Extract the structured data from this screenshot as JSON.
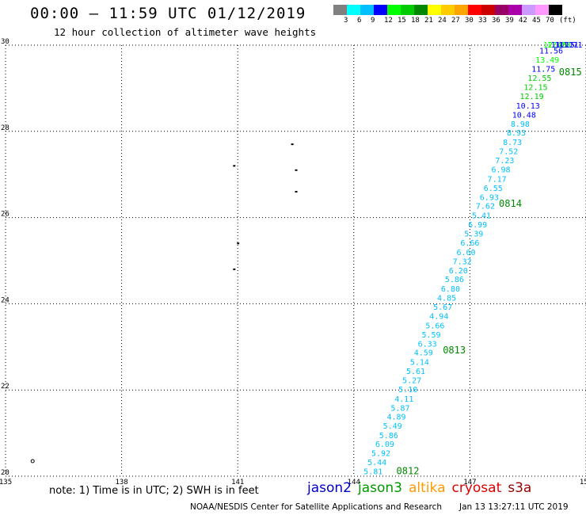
{
  "header": {
    "title": "00:00 – 11:59 UTC 01/12/2019",
    "subtitle": "12 hour collection of altimeter wave heights"
  },
  "legend": {
    "colors": [
      "#808080",
      "#00ffff",
      "#00bfff",
      "#0000ff",
      "#00ff00",
      "#00cc00",
      "#008800",
      "#ffff00",
      "#ffcc00",
      "#ffa500",
      "#ff0000",
      "#cc0000",
      "#990066",
      "#aa00aa",
      "#cc99ff",
      "#ff99ff",
      "#000000"
    ],
    "labels": [
      "3",
      "6",
      "9",
      "12",
      "15",
      "18",
      "21",
      "24",
      "27",
      "30",
      "33",
      "36",
      "39",
      "42",
      "45",
      "70",
      "(ft)"
    ]
  },
  "map": {
    "lat_range": [
      20,
      30
    ],
    "lon_range": [
      135,
      150
    ],
    "lat_ticks": [
      "20",
      "22",
      "24",
      "26",
      "28",
      "30"
    ],
    "lon_ticks": [
      "135",
      "138",
      "141",
      "144",
      "147",
      "150"
    ],
    "grid": true,
    "islands": [
      {
        "lon": 135.7,
        "lat": 20.35,
        "type": "ring"
      },
      {
        "lon": 140.9,
        "lat": 24.8
      },
      {
        "lon": 141.0,
        "lat": 25.4
      },
      {
        "lon": 142.5,
        "lat": 26.6
      },
      {
        "lon": 142.5,
        "lat": 27.1
      },
      {
        "lon": 142.4,
        "lat": 27.7
      },
      {
        "lon": 140.9,
        "lat": 27.2
      }
    ],
    "tracks": [
      {
        "color": "#00bfff",
        "points": [
          {
            "lon": 144.5,
            "lat": 20.05,
            "v": "5.81"
          },
          {
            "lon": 144.6,
            "lat": 20.26,
            "v": "5.44"
          },
          {
            "lon": 144.7,
            "lat": 20.47,
            "v": "5.92"
          },
          {
            "lon": 144.8,
            "lat": 20.68,
            "v": "6.09"
          },
          {
            "lon": 144.9,
            "lat": 20.88,
            "v": "5.86"
          },
          {
            "lon": 145.0,
            "lat": 21.1,
            "v": "5.49"
          },
          {
            "lon": 145.1,
            "lat": 21.31,
            "v": "4.89"
          },
          {
            "lon": 145.2,
            "lat": 21.52,
            "v": "5.87"
          },
          {
            "lon": 145.3,
            "lat": 21.73,
            "v": "4.11"
          },
          {
            "lon": 145.4,
            "lat": 21.95,
            "v": "5.10"
          },
          {
            "lon": 145.5,
            "lat": 22.16,
            "v": "5.27"
          },
          {
            "lon": 145.6,
            "lat": 22.37,
            "v": "5.61"
          },
          {
            "lon": 145.7,
            "lat": 22.58,
            "v": "5.14"
          },
          {
            "lon": 145.8,
            "lat": 22.8,
            "v": "4.59"
          },
          {
            "lon": 145.9,
            "lat": 23.01,
            "v": "6.33"
          },
          {
            "lon": 146.0,
            "lat": 23.22,
            "v": "5.59"
          },
          {
            "lon": 146.1,
            "lat": 23.43,
            "v": "5.66"
          },
          {
            "lon": 146.2,
            "lat": 23.65,
            "v": "4.94"
          },
          {
            "lon": 146.3,
            "lat": 23.86,
            "v": "5.67"
          },
          {
            "lon": 146.4,
            "lat": 24.07,
            "v": "4.85"
          },
          {
            "lon": 146.5,
            "lat": 24.28,
            "v": "6.80"
          },
          {
            "lon": 146.6,
            "lat": 24.5,
            "v": "5.86"
          },
          {
            "lon": 146.7,
            "lat": 24.71,
            "v": "6.20"
          },
          {
            "lon": 146.8,
            "lat": 24.92,
            "v": "7.32"
          },
          {
            "lon": 146.9,
            "lat": 25.13,
            "v": "6.60"
          },
          {
            "lon": 147.0,
            "lat": 25.35,
            "v": "6.66"
          },
          {
            "lon": 147.1,
            "lat": 25.56,
            "v": "5.39"
          },
          {
            "lon": 147.2,
            "lat": 25.77,
            "v": "6.99"
          },
          {
            "lon": 147.3,
            "lat": 25.98,
            "v": "5.41"
          },
          {
            "lon": 147.4,
            "lat": 26.2,
            "v": "7.62"
          },
          {
            "lon": 147.5,
            "lat": 26.41,
            "v": "6.93"
          },
          {
            "lon": 147.6,
            "lat": 26.62,
            "v": "6.55"
          },
          {
            "lon": 147.7,
            "lat": 26.83,
            "v": "7.17"
          },
          {
            "lon": 147.8,
            "lat": 27.05,
            "v": "6.98"
          },
          {
            "lon": 147.9,
            "lat": 27.26,
            "v": "7.23"
          },
          {
            "lon": 148.0,
            "lat": 27.47,
            "v": "7.52"
          },
          {
            "lon": 148.1,
            "lat": 27.68,
            "v": "8.73"
          },
          {
            "lon": 148.2,
            "lat": 27.9,
            "v": "8.93"
          },
          {
            "lon": 148.3,
            "lat": 28.11,
            "v": "8.98"
          }
        ]
      },
      {
        "color": "#0000ff",
        "points": [
          {
            "lon": 148.4,
            "lat": 28.32,
            "v": "10.48"
          },
          {
            "lon": 148.5,
            "lat": 28.53,
            "v": "10.13"
          }
        ]
      },
      {
        "color": "#00cc00",
        "points": [
          {
            "lon": 148.6,
            "lat": 28.75,
            "v": "12.19"
          },
          {
            "lon": 148.7,
            "lat": 28.96,
            "v": "12.15"
          },
          {
            "lon": 148.8,
            "lat": 29.17,
            "v": "12.55"
          }
        ]
      },
      {
        "color": "#0000ff",
        "points": [
          {
            "lon": 148.9,
            "lat": 29.38,
            "v": "11.75"
          }
        ]
      },
      {
        "color": "#00ff00",
        "points": [
          {
            "lon": 149.0,
            "lat": 29.6,
            "v": "13.49"
          }
        ]
      },
      {
        "color": "#0000ff",
        "points": [
          {
            "lon": 149.1,
            "lat": 29.81,
            "v": "11.56"
          }
        ]
      },
      {
        "color": "#00ff00",
        "points": [
          {
            "lon": 149.2,
            "lat": 30.02,
            "v": "12.45"
          },
          {
            "lon": 149.3,
            "lat": 30.23,
            "v": "12.28"
          }
        ]
      },
      {
        "color": "#0000ff",
        "points": [
          {
            "lon": 149.4,
            "lat": 30.45,
            "v": "11.15"
          },
          {
            "lon": 149.5,
            "lat": 30.66,
            "v": "11.71"
          },
          {
            "lon": 149.6,
            "lat": 30.87,
            "v": "11.71"
          }
        ]
      }
    ],
    "time_labels": [
      {
        "lon": 145.1,
        "lat": 20.05,
        "t": "0812",
        "color": "#008800"
      },
      {
        "lon": 146.3,
        "lat": 22.85,
        "t": "0813",
        "color": "#008800"
      },
      {
        "lon": 147.75,
        "lat": 26.25,
        "t": "0814",
        "color": "#008800"
      },
      {
        "lon": 149.3,
        "lat": 29.3,
        "t": "0815",
        "color": "#008800"
      }
    ]
  },
  "note": "note: 1) Time is in UTC; 2) SWH is in feet",
  "satellites": [
    {
      "name": "jason2",
      "color": "#0000cc"
    },
    {
      "name": "jason3",
      "color": "#009900"
    },
    {
      "name": "altika",
      "color": "#ff9900"
    },
    {
      "name": "cryosat",
      "color": "#dd0000"
    },
    {
      "name": "s3a",
      "color": "#990000"
    }
  ],
  "footer": {
    "center": "NOAA/NESDIS Center for Satellite Applications and Research",
    "timestamp": "Jan 13 13:27:11 UTC 2019"
  }
}
